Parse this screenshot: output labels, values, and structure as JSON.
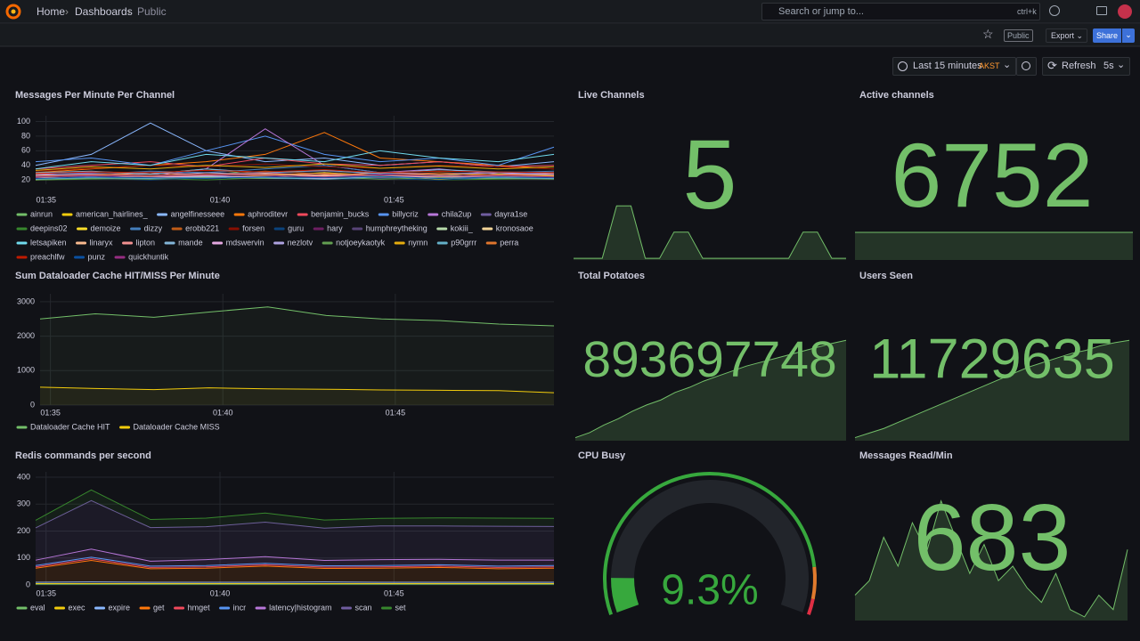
{
  "header": {
    "breadcrumbs": [
      "Home",
      "Dashboards",
      "Public"
    ],
    "search": {
      "placeholder": "Search or jump to...",
      "shortcut": "ctrl+k"
    }
  },
  "toolbar": {
    "badge": "Public",
    "export": "Export",
    "share": "Share"
  },
  "time_picker": {
    "range": "Last 15 minutes",
    "timezone": "AKST",
    "refresh": "Refresh",
    "interval": "5s"
  },
  "panels": [
    {
      "type": "timeseries",
      "title": "Messages Per Minute Per Channel",
      "stacked": false,
      "x": [
        94.7,
        96.3,
        98,
        99.6,
        101.3,
        103,
        104.6,
        106.3,
        108,
        109.6
      ],
      "xlim": [
        94.7,
        109.6
      ],
      "xticks": [
        {
          "value": 95,
          "label": "01:35"
        },
        {
          "value": 100,
          "label": "01:40"
        },
        {
          "value": 105,
          "label": "01:45"
        }
      ],
      "ylim": [
        14,
        108
      ],
      "yticks": [
        20,
        40,
        60,
        80,
        100
      ],
      "series": [
        {
          "name": "ainrun",
          "color": "#73bf69",
          "values": [
            25,
            30,
            28,
            35,
            26,
            30,
            24,
            28,
            22,
            30
          ]
        },
        {
          "name": "american_hairlines_",
          "color": "#f2cc0c",
          "values": [
            20,
            22,
            21,
            24,
            23,
            22,
            25,
            21,
            22,
            23
          ]
        },
        {
          "name": "angelfinesseee",
          "color": "#8ab8ff",
          "values": [
            40,
            55,
            98,
            60,
            45,
            50,
            40,
            45,
            38,
            45
          ]
        },
        {
          "name": "aphroditevr",
          "color": "#ff780a",
          "values": [
            30,
            35,
            40,
            45,
            55,
            85,
            50,
            45,
            40,
            35
          ]
        },
        {
          "name": "benjamin_bucks",
          "color": "#f2495c",
          "values": [
            35,
            40,
            45,
            38,
            50,
            42,
            40,
            45,
            38,
            40
          ]
        },
        {
          "name": "billycriz",
          "color": "#5794f2",
          "values": [
            45,
            50,
            40,
            60,
            80,
            55,
            45,
            50,
            40,
            65
          ]
        },
        {
          "name": "chila2up",
          "color": "#b877d9",
          "values": [
            28,
            30,
            25,
            35,
            90,
            40,
            30,
            35,
            28,
            30
          ]
        },
        {
          "name": "dayra1se",
          "color": "#705da0",
          "values": [
            22,
            25,
            28,
            24,
            30,
            26,
            28,
            25,
            24,
            26
          ]
        },
        {
          "name": "deepins02",
          "color": "#37872d",
          "values": [
            20,
            21,
            22,
            20,
            23,
            21,
            22,
            20,
            21,
            22
          ]
        },
        {
          "name": "demoize",
          "color": "#fade2a",
          "values": [
            24,
            26,
            22,
            28,
            25,
            30,
            26,
            24,
            28,
            25
          ]
        },
        {
          "name": "dizzy",
          "color": "#447ebc",
          "values": [
            30,
            28,
            32,
            30,
            35,
            40,
            30,
            28,
            30,
            32
          ]
        },
        {
          "name": "erobb221",
          "color": "#c15c17",
          "values": [
            26,
            28,
            30,
            27,
            32,
            28,
            26,
            30,
            27,
            28
          ]
        },
        {
          "name": "forsen",
          "color": "#890f02",
          "values": [
            32,
            36,
            40,
            38,
            42,
            38,
            36,
            40,
            38,
            35
          ]
        },
        {
          "name": "guru",
          "color": "#0a437c",
          "values": [
            21,
            22,
            20,
            23,
            22,
            21,
            22,
            20,
            23,
            21
          ]
        },
        {
          "name": "hary",
          "color": "#6d1f62",
          "values": [
            23,
            24,
            25,
            22,
            24,
            26,
            23,
            25,
            24,
            22
          ]
        },
        {
          "name": "humphreytheking",
          "color": "#584477",
          "values": [
            27,
            29,
            31,
            28,
            30,
            32,
            29,
            27,
            30,
            28
          ]
        },
        {
          "name": "kokiii_",
          "color": "#b7dbab",
          "values": [
            22,
            23,
            25,
            24,
            22,
            23,
            25,
            24,
            22,
            23
          ]
        },
        {
          "name": "kronosaoe",
          "color": "#f4d598",
          "values": [
            25,
            27,
            24,
            26,
            28,
            25,
            27,
            24,
            26,
            27
          ]
        },
        {
          "name": "letsapiken",
          "color": "#70dbed",
          "values": [
            35,
            45,
            40,
            55,
            50,
            45,
            60,
            50,
            45,
            55
          ]
        },
        {
          "name": "linaryx",
          "color": "#f9ba8f",
          "values": [
            24,
            22,
            26,
            25,
            23,
            27,
            24,
            26,
            25,
            23
          ]
        },
        {
          "name": "lipton",
          "color": "#f29191",
          "values": [
            28,
            25,
            30,
            27,
            29,
            26,
            30,
            28,
            27,
            29
          ]
        },
        {
          "name": "mande",
          "color": "#82b5d8",
          "values": [
            30,
            32,
            28,
            35,
            30,
            33,
            29,
            34,
            31,
            30
          ]
        },
        {
          "name": "mdswervin",
          "color": "#e5a8e2",
          "values": [
            22,
            24,
            23,
            25,
            24,
            22,
            25,
            23,
            24,
            22
          ]
        },
        {
          "name": "nezlotv",
          "color": "#aea2e0",
          "values": [
            26,
            28,
            25,
            30,
            27,
            29,
            26,
            28,
            30,
            27
          ]
        },
        {
          "name": "notjoeykaotyk",
          "color": "#629e51",
          "values": [
            20,
            22,
            21,
            23,
            22,
            24,
            21,
            23,
            22,
            21
          ]
        },
        {
          "name": "nymn",
          "color": "#e5ac0e",
          "values": [
            33,
            38,
            35,
            40,
            37,
            42,
            36,
            39,
            35,
            38
          ]
        },
        {
          "name": "p90grrr",
          "color": "#64b0c8",
          "values": [
            21,
            23,
            22,
            24,
            23,
            21,
            24,
            22,
            23,
            22
          ]
        },
        {
          "name": "perra",
          "color": "#e0752d",
          "values": [
            25,
            27,
            26,
            28,
            27,
            29,
            26,
            28,
            27,
            26
          ]
        },
        {
          "name": "preachlfw",
          "color": "#bf1b00",
          "values": [
            29,
            31,
            30,
            33,
            31,
            34,
            30,
            32,
            31,
            30
          ]
        },
        {
          "name": "punz",
          "color": "#0a50a1",
          "values": [
            22,
            24,
            23,
            22,
            24,
            23,
            25,
            22,
            24,
            23
          ]
        },
        {
          "name": "quickhuntik",
          "color": "#962d82",
          "values": [
            24,
            26,
            25,
            27,
            26,
            24,
            27,
            25,
            26,
            24
          ]
        }
      ]
    },
    {
      "type": "stat",
      "title": "Live Channels",
      "value": 5,
      "color": "#73bf69",
      "sparkline": [
        1,
        1,
        1,
        5,
        5,
        1,
        1,
        3,
        3,
        1,
        1,
        1,
        1,
        1,
        1,
        1,
        3,
        3,
        1,
        1
      ]
    },
    {
      "type": "stat",
      "title": "Active channels",
      "value": 6752,
      "color": "#73bf69",
      "sparkline": [
        6752,
        6752,
        6752,
        6752,
        6752,
        6752,
        6752,
        6752,
        6752,
        6752
      ]
    },
    {
      "type": "timeseries",
      "title": "Sum Dataloader Cache HIT/MISS Per Minute",
      "stacked": false,
      "x": [
        94.7,
        96.3,
        98,
        99.6,
        101.3,
        103,
        104.6,
        106.3,
        108,
        109.6
      ],
      "xlim": [
        94.7,
        109.6
      ],
      "xticks": [
        {
          "value": 95,
          "label": "01:35"
        },
        {
          "value": 100,
          "label": "01:40"
        },
        {
          "value": 105,
          "label": "01:45"
        }
      ],
      "ylim": [
        0,
        3230
      ],
      "yticks": [
        0,
        1000,
        2000,
        3000
      ],
      "series": [
        {
          "name": "Dataloader Cache HIT",
          "color": "#73bf69",
          "values": [
            2500,
            2650,
            2550,
            2700,
            2850,
            2600,
            2500,
            2450,
            2350,
            2300
          ]
        },
        {
          "name": "Dataloader Cache MISS",
          "color": "#f2cc0c",
          "values": [
            520,
            480,
            450,
            500,
            470,
            460,
            440,
            430,
            420,
            360
          ]
        }
      ]
    },
    {
      "type": "stat",
      "title": "Total Potatoes",
      "value": 893697748,
      "color": "#73bf69",
      "sparkline": [
        893690000,
        893690400,
        893691000,
        893691500,
        893692100,
        893692600,
        893693000,
        893693600,
        893694000,
        893694500,
        893694900,
        893695300,
        893695700,
        893696000,
        893696300,
        893696600,
        893696900,
        893697200,
        893697500,
        893697748
      ]
    },
    {
      "type": "stat",
      "title": "Users Seen",
      "value": 11729635,
      "color": "#73bf69",
      "sparkline": [
        11729000,
        11729030,
        11729060,
        11729100,
        11729140,
        11729180,
        11729220,
        11729260,
        11729300,
        11729340,
        11729380,
        11729420,
        11729460,
        11729490,
        11729520,
        11729550,
        11729570,
        11729600,
        11729620,
        11729635
      ]
    },
    {
      "type": "timeseries",
      "title": "Redis commands per second",
      "stacked": true,
      "x": [
        94.7,
        96.3,
        98,
        99.6,
        101.3,
        103,
        104.6,
        106.3,
        108,
        109.6
      ],
      "xlim": [
        94.7,
        109.6
      ],
      "xticks": [
        {
          "value": 95,
          "label": "01:35"
        },
        {
          "value": 100,
          "label": "01:40"
        },
        {
          "value": 105,
          "label": "01:45"
        }
      ],
      "ylim": [
        0,
        420
      ],
      "yticks": [
        0,
        100,
        200,
        300,
        400
      ],
      "series": [
        {
          "name": "eval",
          "color": "#73bf69",
          "values": [
            3,
            3,
            3,
            3,
            3,
            3,
            3,
            3,
            3,
            3
          ]
        },
        {
          "name": "exec",
          "color": "#f2cc0c",
          "values": [
            2,
            2,
            2,
            2,
            2,
            2,
            2,
            2,
            2,
            2
          ]
        },
        {
          "name": "expire",
          "color": "#8ab8ff",
          "values": [
            5,
            6,
            5,
            5,
            5,
            6,
            5,
            5,
            5,
            5
          ]
        },
        {
          "name": "get",
          "color": "#ff780a",
          "values": [
            52,
            80,
            50,
            52,
            60,
            50,
            52,
            55,
            50,
            52
          ]
        },
        {
          "name": "hmget",
          "color": "#f2495c",
          "values": [
            5,
            6,
            5,
            5,
            5,
            5,
            5,
            5,
            5,
            5
          ]
        },
        {
          "name": "incr",
          "color": "#5794f2",
          "values": [
            5,
            6,
            5,
            5,
            5,
            5,
            5,
            5,
            5,
            5
          ]
        },
        {
          "name": "latency|histogram",
          "color": "#b877d9",
          "values": [
            20,
            30,
            18,
            22,
            25,
            20,
            22,
            20,
            22,
            20
          ]
        },
        {
          "name": "scan",
          "color": "#705da0",
          "values": [
            120,
            180,
            125,
            122,
            128,
            120,
            125,
            124,
            126,
            125
          ]
        },
        {
          "name": "set",
          "color": "#37872d",
          "values": [
            28,
            40,
            30,
            32,
            34,
            30,
            28,
            30,
            30,
            30
          ]
        }
      ]
    },
    {
      "type": "gauge",
      "title": "CPU Busy",
      "value": 9.3,
      "value_label": "9.3%",
      "min": 0,
      "max": 100,
      "color": "#37a83d",
      "thresholds": [
        {
          "value": 0,
          "color": "#37a83d"
        },
        {
          "value": 88,
          "color": "#e07a2d"
        },
        {
          "value": 96,
          "color": "#e02f44"
        }
      ]
    },
    {
      "type": "stat",
      "title": "Messages Read/Min",
      "value": 683,
      "color": "#73bf69",
      "sparkline": [
        620,
        640,
        700,
        660,
        720,
        680,
        750,
        700,
        650,
        690,
        640,
        660,
        630,
        610,
        650,
        600,
        590,
        620,
        600,
        683
      ]
    }
  ]
}
